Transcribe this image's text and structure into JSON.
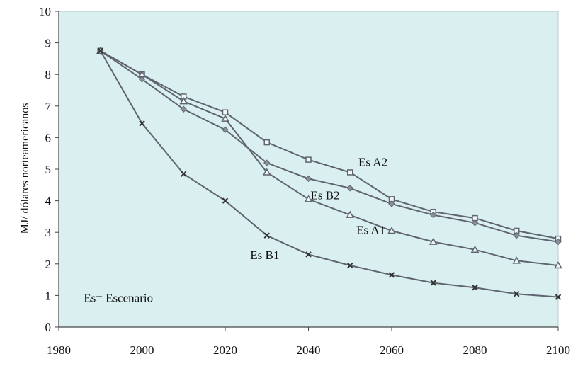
{
  "chart_data": {
    "type": "line",
    "title": "",
    "xlabel": "",
    "ylabel": "MJ/ dólares norteamericanos",
    "xlim": [
      1980,
      2100
    ],
    "ylim": [
      0,
      10
    ],
    "xticks": [
      1980,
      2000,
      2020,
      2040,
      2060,
      2080,
      2100
    ],
    "yticks": [
      0,
      1,
      2,
      3,
      4,
      5,
      6,
      7,
      8,
      9,
      10
    ],
    "grid": false,
    "background": "#d9eff0",
    "line_color": "#5f6470",
    "x": [
      1990,
      2000,
      2010,
      2020,
      2030,
      2040,
      2050,
      2060,
      2070,
      2080,
      2090,
      2100
    ],
    "series": [
      {
        "name": "Es A2",
        "marker": "square",
        "values": [
          8.75,
          8.0,
          7.3,
          6.8,
          5.85,
          5.3,
          4.9,
          4.05,
          3.65,
          3.45,
          3.05,
          2.8
        ]
      },
      {
        "name": "Es B2",
        "marker": "diamond",
        "values": [
          8.75,
          7.85,
          6.9,
          6.25,
          5.2,
          4.7,
          4.4,
          3.9,
          3.55,
          3.3,
          2.9,
          2.7
        ]
      },
      {
        "name": "Es A1",
        "marker": "triangle",
        "values": [
          8.75,
          8.0,
          7.15,
          6.6,
          4.9,
          4.05,
          3.55,
          3.05,
          2.7,
          2.45,
          2.1,
          1.95
        ]
      },
      {
        "name": "Es B1",
        "marker": "x",
        "values": [
          8.75,
          6.45,
          4.85,
          4.0,
          2.9,
          2.3,
          1.95,
          1.65,
          1.4,
          1.25,
          1.05,
          0.95
        ]
      }
    ],
    "annotations": [
      {
        "text": "Es A2",
        "x": 2052,
        "y": 5.1
      },
      {
        "text": "Es B2",
        "x": 2040.5,
        "y": 4.05
      },
      {
        "text": "Es A1",
        "x": 2051.5,
        "y": 2.95
      },
      {
        "text": "Es B1",
        "x": 2026,
        "y": 2.15
      },
      {
        "text": "Es= Escenario",
        "x": 1986,
        "y": 0.8
      }
    ]
  }
}
